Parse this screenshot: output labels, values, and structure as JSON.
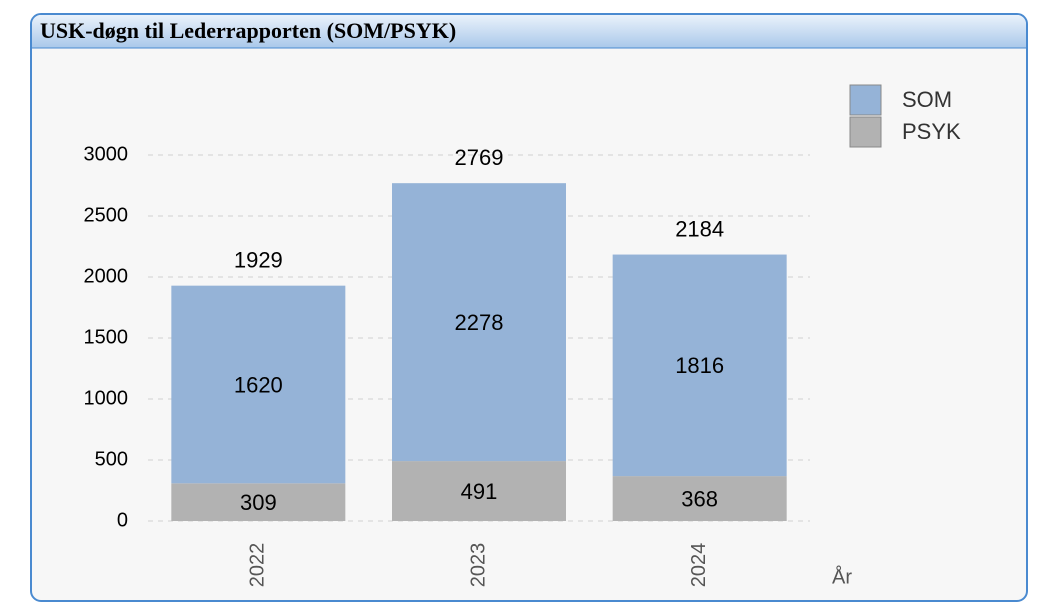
{
  "chart_data": {
    "type": "stacked_bar",
    "title": "USK-døgn til Lederrapporten (SOM/PSYK)",
    "x_label": "År",
    "categories": [
      "2022",
      "2023",
      "2024"
    ],
    "series": [
      {
        "name": "SOM",
        "color": "#95b3d7",
        "values": [
          1620,
          2278,
          1816
        ]
      },
      {
        "name": "PSYK",
        "color": "#b2b2b2",
        "values": [
          309,
          491,
          368
        ]
      }
    ],
    "totals": [
      1929,
      2769,
      2184
    ],
    "ylim": [
      0,
      3000
    ],
    "yticks": [
      0,
      500,
      1000,
      1500,
      2000,
      2500,
      3000
    ],
    "grid": true,
    "legend": "top-right"
  }
}
